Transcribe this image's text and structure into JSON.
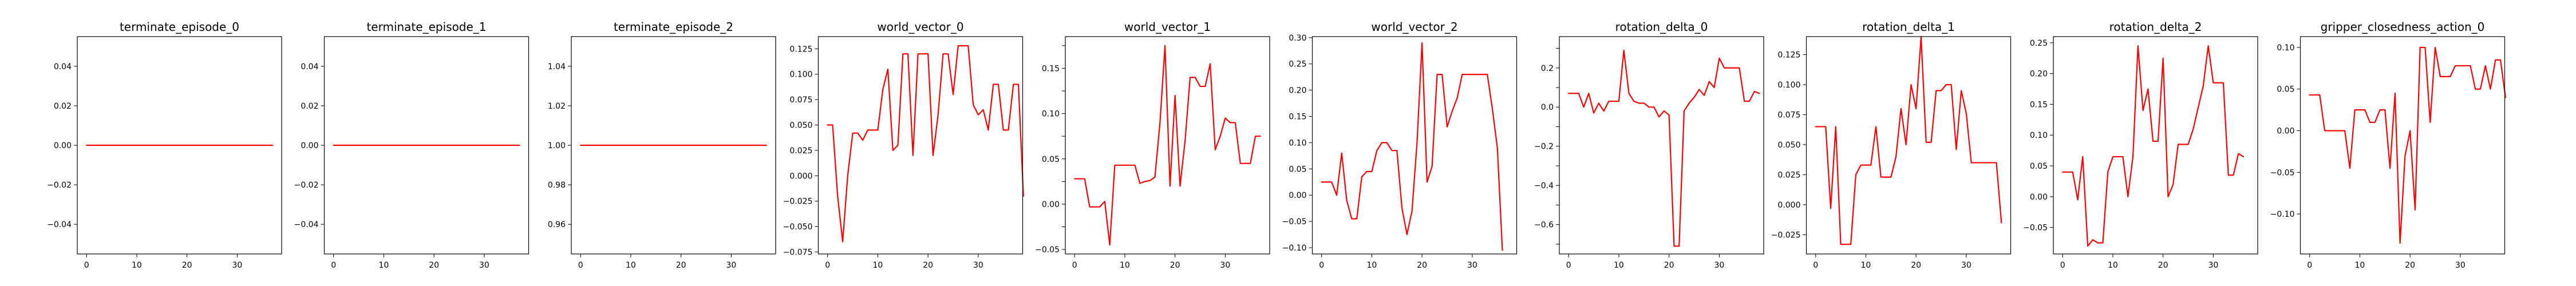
{
  "style": {
    "line_color": "#ff0000"
  },
  "chart_data": [
    {
      "type": "line",
      "title": "terminate_episode_0",
      "xlabel": "",
      "ylabel": "",
      "xlim": [
        -1.85,
        38.85
      ],
      "ylim": [
        -0.055,
        0.055
      ],
      "xticks": [
        0,
        10,
        20,
        30
      ],
      "yticks": [
        -0.04,
        -0.02,
        0.0,
        0.02,
        0.04
      ],
      "ytick_labels": [
        "−0.04",
        "−0.02",
        "0.00",
        "0.02",
        "0.04"
      ],
      "series": [
        {
          "values": [
            0,
            0,
            0,
            0,
            0,
            0,
            0,
            0,
            0,
            0,
            0,
            0,
            0,
            0,
            0,
            0,
            0,
            0,
            0,
            0,
            0,
            0,
            0,
            0,
            0,
            0,
            0,
            0,
            0,
            0,
            0,
            0,
            0,
            0,
            0,
            0,
            0,
            0
          ]
        }
      ]
    },
    {
      "type": "line",
      "title": "terminate_episode_1",
      "xlabel": "",
      "ylabel": "",
      "xlim": [
        -1.85,
        38.85
      ],
      "ylim": [
        -0.055,
        0.055
      ],
      "xticks": [
        0,
        10,
        20,
        30
      ],
      "yticks": [
        -0.04,
        -0.02,
        0.0,
        0.02,
        0.04
      ],
      "ytick_labels": [
        "−0.04",
        "−0.02",
        "0.00",
        "0.02",
        "0.04"
      ],
      "series": [
        {
          "values": [
            0,
            0,
            0,
            0,
            0,
            0,
            0,
            0,
            0,
            0,
            0,
            0,
            0,
            0,
            0,
            0,
            0,
            0,
            0,
            0,
            0,
            0,
            0,
            0,
            0,
            0,
            0,
            0,
            0,
            0,
            0,
            0,
            0,
            0,
            0,
            0,
            0,
            0
          ]
        }
      ]
    },
    {
      "type": "line",
      "title": "terminate_episode_2",
      "xlabel": "",
      "ylabel": "",
      "xlim": [
        -1.85,
        38.85
      ],
      "ylim": [
        0.945,
        1.055
      ],
      "xticks": [
        0,
        10,
        20,
        30
      ],
      "yticks": [
        0.96,
        0.98,
        1.0,
        1.02,
        1.04
      ],
      "ytick_labels": [
        "0.96",
        "0.98",
        "1.00",
        "1.02",
        "1.04"
      ],
      "series": [
        {
          "values": [
            1,
            1,
            1,
            1,
            1,
            1,
            1,
            1,
            1,
            1,
            1,
            1,
            1,
            1,
            1,
            1,
            1,
            1,
            1,
            1,
            1,
            1,
            1,
            1,
            1,
            1,
            1,
            1,
            1,
            1,
            1,
            1,
            1,
            1,
            1,
            1,
            1,
            1
          ]
        }
      ]
    },
    {
      "type": "line",
      "title": "world_vector_0",
      "xlabel": "",
      "ylabel": "",
      "xlim": [
        -1.85,
        38.85
      ],
      "ylim": [
        -0.077,
        0.137
      ],
      "xticks": [
        0,
        10,
        20,
        30
      ],
      "yticks": [
        -0.075,
        -0.05,
        -0.025,
        0.0,
        0.025,
        0.05,
        0.075,
        0.1,
        0.125
      ],
      "ytick_labels": [
        "−0.075",
        "−0.050",
        "−0.025",
        "0.000",
        "0.025",
        "0.050",
        "0.075",
        "0.100",
        "0.125"
      ],
      "series": [
        {
          "values": [
            0.05,
            0.05,
            -0.02,
            -0.065,
            0.0,
            0.042,
            0.042,
            0.035,
            0.045,
            0.045,
            0.045,
            0.085,
            0.105,
            0.025,
            0.03,
            0.12,
            0.12,
            0.02,
            0.12,
            0.12,
            0.12,
            0.02,
            0.06,
            0.12,
            0.12,
            0.08,
            0.128,
            0.128,
            0.128,
            0.07,
            0.06,
            0.065,
            0.045,
            0.09,
            0.09,
            0.045,
            0.045,
            0.09,
            0.09,
            -0.02
          ]
        }
      ]
    },
    {
      "type": "line",
      "title": "world_vector_1",
      "xlabel": "",
      "ylabel": "",
      "xlim": [
        -1.85,
        38.85
      ],
      "ylim": [
        -0.055,
        0.185
      ],
      "xticks": [
        0,
        10,
        20,
        30
      ],
      "yticks": [
        -0.05,
        -0.025,
        0.0,
        0.025,
        0.05,
        0.075,
        0.1,
        0.125,
        0.15,
        0.175
      ],
      "ytick_labels": [
        "−0.05",
        "0.00",
        "0.05",
        "0.10",
        "0.15"
      ],
      "ytick_label_values": [
        -0.05,
        0.0,
        0.05,
        0.1,
        0.15
      ],
      "series": [
        {
          "values": [
            0.028,
            0.028,
            0.028,
            -0.003,
            -0.003,
            -0.003,
            0.003,
            -0.045,
            0.043,
            0.043,
            0.043,
            0.043,
            0.043,
            0.023,
            0.025,
            0.026,
            0.03,
            0.09,
            0.175,
            0.02,
            0.12,
            0.02,
            0.07,
            0.14,
            0.14,
            0.13,
            0.13,
            0.155,
            0.06,
            0.075,
            0.095,
            0.09,
            0.09,
            0.045,
            0.045,
            0.045,
            0.075,
            0.075
          ]
        }
      ]
    },
    {
      "type": "line",
      "title": "world_vector_2",
      "xlabel": "",
      "ylabel": "",
      "xlim": [
        -1.85,
        38.85
      ],
      "ylim": [
        -0.112,
        0.302
      ],
      "xticks": [
        0,
        10,
        20,
        30
      ],
      "yticks": [
        -0.1,
        -0.05,
        0.0,
        0.05,
        0.1,
        0.15,
        0.2,
        0.25,
        0.3
      ],
      "ytick_labels": [
        "−0.10",
        "−0.05",
        "0.00",
        "0.05",
        "0.10",
        "0.15",
        "0.20",
        "0.25",
        "0.30"
      ],
      "series": [
        {
          "values": [
            0.025,
            0.025,
            0.025,
            0.0,
            0.08,
            -0.01,
            -0.045,
            -0.045,
            0.035,
            0.045,
            0.045,
            0.085,
            0.1,
            0.1,
            0.085,
            0.085,
            -0.025,
            -0.075,
            -0.03,
            0.1,
            0.29,
            0.025,
            0.055,
            0.23,
            0.23,
            0.13,
            0.16,
            0.185,
            0.23,
            0.23,
            0.23,
            0.23,
            0.23,
            0.23,
            0.165,
            0.09,
            -0.105
          ]
        }
      ]
    },
    {
      "type": "line",
      "title": "rotation_delta_0",
      "xlabel": "",
      "ylabel": "",
      "xlim": [
        -1.85,
        38.85
      ],
      "ylim": [
        -0.75,
        0.36
      ],
      "xticks": [
        0,
        10,
        20,
        30
      ],
      "yticks": [
        -0.7,
        -0.6,
        -0.5,
        -0.4,
        -0.3,
        -0.2,
        -0.1,
        0.0,
        0.1,
        0.2,
        0.3
      ],
      "ytick_labels": [
        "−0.6",
        "−0.4",
        "−0.2",
        "0.0",
        "0.2"
      ],
      "ytick_label_values": [
        -0.6,
        -0.4,
        -0.2,
        0.0,
        0.2
      ],
      "series": [
        {
          "values": [
            0.07,
            0.07,
            0.07,
            0.0,
            0.07,
            -0.03,
            0.02,
            -0.02,
            0.03,
            0.03,
            0.03,
            0.29,
            0.07,
            0.03,
            0.02,
            0.02,
            0.0,
            0.0,
            -0.05,
            -0.02,
            -0.04,
            -0.71,
            -0.71,
            -0.02,
            0.02,
            0.05,
            0.09,
            0.06,
            0.13,
            0.1,
            0.25,
            0.2,
            0.2,
            0.2,
            0.2,
            0.03,
            0.03,
            0.08,
            0.07
          ]
        }
      ]
    },
    {
      "type": "line",
      "title": "rotation_delta_1",
      "xlabel": "",
      "ylabel": "",
      "xlim": [
        -1.85,
        38.85
      ],
      "ylim": [
        -0.041,
        0.14
      ],
      "xticks": [
        0,
        10,
        20,
        30
      ],
      "yticks": [
        -0.025,
        0.0,
        0.025,
        0.05,
        0.075,
        0.1,
        0.125
      ],
      "ytick_labels": [
        "−0.025",
        "0.000",
        "0.025",
        "0.050",
        "0.075",
        "0.100",
        "0.125"
      ],
      "series": [
        {
          "values": [
            0.065,
            0.065,
            0.065,
            -0.003,
            0.065,
            -0.033,
            -0.033,
            -0.033,
            0.025,
            0.033,
            0.033,
            0.033,
            0.065,
            0.023,
            0.023,
            0.023,
            0.04,
            0.08,
            0.05,
            0.1,
            0.08,
            0.14,
            0.052,
            0.052,
            0.095,
            0.095,
            0.1,
            0.1,
            0.046,
            0.095,
            0.076,
            0.035,
            0.035,
            0.035,
            0.035,
            0.035,
            0.035,
            -0.015
          ]
        }
      ]
    },
    {
      "type": "line",
      "title": "rotation_delta_2",
      "xlabel": "",
      "ylabel": "",
      "xlim": [
        -1.85,
        38.85
      ],
      "ylim": [
        -0.093,
        0.26
      ],
      "xticks": [
        0,
        10,
        20,
        30
      ],
      "yticks": [
        -0.05,
        0.0,
        0.05,
        0.1,
        0.15,
        0.2,
        0.25
      ],
      "ytick_labels": [
        "−0.05",
        "0.00",
        "0.05",
        "0.10",
        "0.15",
        "0.20",
        "0.25"
      ],
      "series": [
        {
          "values": [
            0.04,
            0.04,
            0.04,
            -0.005,
            0.065,
            -0.08,
            -0.07,
            -0.075,
            -0.075,
            0.04,
            0.065,
            0.065,
            0.065,
            0.0,
            0.065,
            0.245,
            0.14,
            0.175,
            0.09,
            0.09,
            0.225,
            0.0,
            0.02,
            0.085,
            0.085,
            0.085,
            0.11,
            0.145,
            0.18,
            0.245,
            0.185,
            0.185,
            0.185,
            0.035,
            0.035,
            0.07,
            0.065
          ]
        }
      ]
    },
    {
      "type": "line",
      "title": "gripper_closedness_action_0",
      "xlabel": "",
      "ylabel": "",
      "xlim": [
        -1.85,
        38.85
      ],
      "ylim": [
        -0.148,
        0.113
      ],
      "xticks": [
        0,
        10,
        20,
        30
      ],
      "yticks": [
        -0.1,
        -0.05,
        0.0,
        0.05,
        0.1
      ],
      "ytick_labels": [
        "−0.10",
        "−0.05",
        "0.00",
        "0.05",
        "0.10"
      ],
      "series": [
        {
          "values": [
            0.043,
            0.043,
            0.043,
            0.0,
            0.0,
            0.0,
            0.0,
            0.0,
            -0.045,
            0.025,
            0.025,
            0.025,
            0.01,
            0.01,
            0.025,
            0.025,
            -0.045,
            0.045,
            -0.135,
            -0.03,
            0.0,
            -0.095,
            0.1,
            0.1,
            0.01,
            0.1,
            0.065,
            0.065,
            0.065,
            0.078,
            0.078,
            0.078,
            0.078,
            0.05,
            0.05,
            0.078,
            0.05,
            0.085,
            0.085,
            0.04
          ]
        }
      ]
    }
  ]
}
